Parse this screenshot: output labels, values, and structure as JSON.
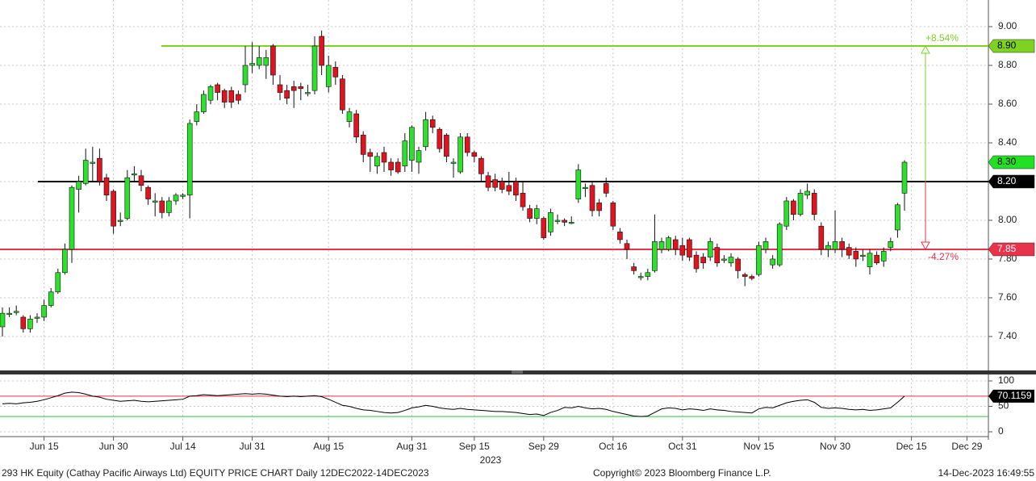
{
  "chart_data": [
    {
      "type": "candlestick",
      "xlim": [
        -0.35,
        142.09
      ],
      "xticks": [
        {
          "value": 6,
          "label": "Jun 15"
        },
        {
          "value": 16,
          "label": "Jun 30"
        },
        {
          "value": 26,
          "label": "Jul 14"
        },
        {
          "value": 36,
          "label": "Jul 31"
        },
        {
          "value": 47,
          "label": "Aug 15"
        },
        {
          "value": 59,
          "label": "Aug 31"
        },
        {
          "value": 68,
          "label": "Sep 15"
        },
        {
          "value": 78,
          "label": "Sep 29"
        },
        {
          "value": 88,
          "label": "Oct 16"
        },
        {
          "value": 98,
          "label": "Oct 31"
        },
        {
          "value": 109,
          "label": "Nov 15"
        },
        {
          "value": 120,
          "label": "Nov 30"
        },
        {
          "value": 131,
          "label": "Dec 15"
        },
        {
          "value": 139,
          "label": "Dec 29"
        }
      ],
      "x_sublabel": "2023",
      "ylim": [
        7.229,
        9.1375
      ],
      "yticks": [
        {
          "value": 7.4,
          "label": "7.40"
        },
        {
          "value": 7.6,
          "label": "7.60"
        },
        {
          "value": 7.8,
          "label": "7.80"
        },
        {
          "value": 8,
          "label": "8.00"
        },
        {
          "value": 8.2,
          "label": "8.20"
        },
        {
          "value": 8.4,
          "label": "8.40"
        },
        {
          "value": 8.6,
          "label": "8.60"
        },
        {
          "value": 8.8,
          "label": "8.80"
        },
        {
          "value": 9,
          "label": "9.00"
        }
      ],
      "grid": true,
      "up_color": "#2ee02e",
      "down_color": "#e0141e",
      "open": [
        7.45,
        7.52,
        7.53,
        7.5,
        7.44,
        7.5,
        7.5,
        7.56,
        7.63,
        7.73,
        7.85,
        8.16,
        8.19,
        8.3,
        8.32,
        8.22,
        8.15,
        8.0,
        8.01,
        8.24,
        8.23,
        8.17,
        8.1,
        8.1,
        8.04,
        8.1,
        8.13,
        8.13,
        8.51,
        8.56,
        8.62,
        8.7,
        8.67,
        8.67,
        8.65,
        8.7,
        8.8,
        8.8,
        8.8,
        8.9,
        8.7,
        8.67,
        8.69,
        8.69,
        8.66,
        8.67,
        8.95,
        8.69,
        8.79,
        8.73,
        8.51,
        8.55,
        8.44,
        8.35,
        8.28,
        8.35,
        8.3,
        8.3,
        8.28,
        8.31,
        8.3,
        8.38,
        8.52,
        8.47,
        8.44,
        8.3,
        8.25,
        8.43,
        8.35,
        8.32,
        8.23,
        8.21,
        8.2,
        8.18,
        8.2,
        8.14,
        8.06,
        8.01,
        8.01,
        7.94,
        8.0,
        8.0,
        7.99,
        8.11,
        8.17,
        8.18,
        8.09,
        8.19,
        8.09,
        7.94,
        7.88,
        7.76,
        7.71,
        7.71,
        7.74,
        7.85,
        7.85,
        7.9,
        7.87,
        7.9,
        7.82,
        7.81,
        7.81,
        7.86,
        7.8,
        7.78,
        7.8,
        7.72,
        7.71,
        7.72,
        7.85,
        7.77,
        7.77,
        7.97,
        8.1,
        8.03,
        8.13,
        8.14,
        7.97,
        7.85,
        7.85,
        7.89,
        7.86,
        7.84,
        7.82,
        7.76,
        7.82,
        7.79,
        7.86,
        7.95,
        8.14
      ],
      "high": [
        7.55,
        7.55,
        7.56,
        7.51,
        7.51,
        7.52,
        7.59,
        7.65,
        7.75,
        7.88,
        8.18,
        8.23,
        8.37,
        8.38,
        8.37,
        8.24,
        8.16,
        8.04,
        8.26,
        8.28,
        8.26,
        8.18,
        8.14,
        8.12,
        8.12,
        8.14,
        8.14,
        8.52,
        8.6,
        8.67,
        8.7,
        8.71,
        8.68,
        8.69,
        8.67,
        8.9,
        8.92,
        8.9,
        8.88,
        8.91,
        8.75,
        8.7,
        8.72,
        8.71,
        8.7,
        8.95,
        8.98,
        8.85,
        8.82,
        8.75,
        8.58,
        8.57,
        8.46,
        8.37,
        8.35,
        8.38,
        8.32,
        8.32,
        8.45,
        8.49,
        8.38,
        8.56,
        8.54,
        8.48,
        8.45,
        8.32,
        8.45,
        8.45,
        8.36,
        8.33,
        8.25,
        8.24,
        8.22,
        8.25,
        8.22,
        8.2,
        8.08,
        8.08,
        8.02,
        8.06,
        8.03,
        8.01,
        8.02,
        8.29,
        8.19,
        8.2,
        8.11,
        8.22,
        8.1,
        7.96,
        7.9,
        7.78,
        7.73,
        7.75,
        8.03,
        7.91,
        7.92,
        7.92,
        7.91,
        7.91,
        7.84,
        7.83,
        7.91,
        7.88,
        7.82,
        7.83,
        7.81,
        7.73,
        7.72,
        7.89,
        7.91,
        7.82,
        7.99,
        8.12,
        8.11,
        8.16,
        8.19,
        8.16,
        7.99,
        7.89,
        8.05,
        7.91,
        7.88,
        7.86,
        7.85,
        7.85,
        7.84,
        7.86,
        7.91,
        8.09,
        8.31
      ],
      "low": [
        7.4,
        7.5,
        7.51,
        7.42,
        7.42,
        7.47,
        7.48,
        7.55,
        7.62,
        7.72,
        7.78,
        8.04,
        8.18,
        8.2,
        8.18,
        8.1,
        7.93,
        7.97,
        8.0,
        8.2,
        8.15,
        8.08,
        8.02,
        8.01,
        8.02,
        8.08,
        8.11,
        8.01,
        8.49,
        8.55,
        8.6,
        8.62,
        8.58,
        8.58,
        8.6,
        8.66,
        8.76,
        8.78,
        8.73,
        8.7,
        8.62,
        8.6,
        8.58,
        8.62,
        8.64,
        8.65,
        8.75,
        8.66,
        8.7,
        8.55,
        8.48,
        8.4,
        8.3,
        8.25,
        8.24,
        8.25,
        8.23,
        8.24,
        8.25,
        8.25,
        8.24,
        8.36,
        8.45,
        8.35,
        8.3,
        8.22,
        8.24,
        8.33,
        8.3,
        8.2,
        8.15,
        8.15,
        8.14,
        8.13,
        8.1,
        8.05,
        7.99,
        7.98,
        7.9,
        7.92,
        7.98,
        7.97,
        7.98,
        8.09,
        8.12,
        8.02,
        8.02,
        8.12,
        7.95,
        7.88,
        7.8,
        7.72,
        7.69,
        7.69,
        7.73,
        7.83,
        7.84,
        7.82,
        7.79,
        7.79,
        7.73,
        7.75,
        7.79,
        7.76,
        7.78,
        7.76,
        7.7,
        7.66,
        7.69,
        7.71,
        7.83,
        7.75,
        7.76,
        7.95,
        8.0,
        8.02,
        8.11,
        8.0,
        7.82,
        7.81,
        7.83,
        7.81,
        7.8,
        7.76,
        7.79,
        7.72,
        7.77,
        7.76,
        7.84,
        7.91,
        8.05
      ],
      "close": [
        7.52,
        7.52,
        7.53,
        7.44,
        7.49,
        7.5,
        7.56,
        7.63,
        7.73,
        7.85,
        8.17,
        8.2,
        8.31,
        8.3,
        8.2,
        8.13,
        7.97,
        8.0,
        8.22,
        8.24,
        8.18,
        8.11,
        8.1,
        8.04,
        8.1,
        8.13,
        8.13,
        8.5,
        8.56,
        8.65,
        8.69,
        8.66,
        8.61,
        8.61,
        8.62,
        8.8,
        8.81,
        8.84,
        8.84,
        8.75,
        8.66,
        8.63,
        8.67,
        8.68,
        8.66,
        8.9,
        8.8,
        8.8,
        8.74,
        8.57,
        8.56,
        8.43,
        8.34,
        8.33,
        8.33,
        8.3,
        8.26,
        8.25,
        8.41,
        8.48,
        8.36,
        8.52,
        8.48,
        8.37,
        8.33,
        8.3,
        8.43,
        8.35,
        8.33,
        8.24,
        8.17,
        8.17,
        8.16,
        8.15,
        8.13,
        8.07,
        8.01,
        8.06,
        7.91,
        8.04,
        8.0,
        7.99,
        7.99,
        8.26,
        8.17,
        8.05,
        8.05,
        8.14,
        7.97,
        7.9,
        7.85,
        7.74,
        7.71,
        7.73,
        7.89,
        7.89,
        7.91,
        7.85,
        7.82,
        7.81,
        7.75,
        7.78,
        7.89,
        7.78,
        7.8,
        7.81,
        7.74,
        7.71,
        7.7,
        7.87,
        7.89,
        7.8,
        7.98,
        8.1,
        8.03,
        8.14,
        8.15,
        8.03,
        7.85,
        7.87,
        7.89,
        7.85,
        7.82,
        7.8,
        7.82,
        7.83,
        7.78,
        7.84,
        7.89,
        8.08,
        8.3
      ],
      "price_tags": [
        {
          "value": 8.9,
          "label": "8.90",
          "color": "#7ed321",
          "text_color": "#000000",
          "line": true
        },
        {
          "value": 8.3,
          "label": "8.30",
          "color": "#22e022",
          "text_color": "#000000",
          "line": false
        },
        {
          "value": 8.2,
          "label": "8.20",
          "color": "#000000",
          "text_color": "#ffffff",
          "line": true
        },
        {
          "value": 7.85,
          "label": "7.85",
          "color": "#e8334a",
          "text_color": "#ffffff",
          "line": true
        }
      ],
      "annotations": [
        {
          "text": "+8.54%",
          "color": "#7ed321"
        },
        {
          "text": "-4.27%",
          "color": "#e8334a"
        }
      ]
    },
    {
      "type": "line",
      "ylim": [
        -7.9,
        112.7
      ],
      "yticks": [
        0,
        50,
        100
      ],
      "grid": true,
      "reference_lines": [
        {
          "value": 70,
          "color": "#e8334a"
        },
        {
          "value": 30,
          "color": "#2ec82e"
        }
      ],
      "series": [
        {
          "color": "#000000",
          "values": [
            55,
            56,
            55,
            57,
            58,
            60,
            63,
            67,
            71,
            76,
            78,
            77,
            74,
            70,
            68,
            64,
            62,
            60,
            61,
            62,
            60,
            59,
            60,
            61,
            62,
            63,
            64,
            70,
            71,
            73,
            72,
            71,
            72,
            73,
            74,
            75,
            74,
            75,
            74,
            72,
            70,
            69,
            70,
            69,
            70,
            71,
            69,
            64,
            58,
            52,
            50,
            46,
            43,
            42,
            40,
            38,
            37,
            38,
            42,
            47,
            49,
            52,
            50,
            47,
            45,
            44,
            46,
            44,
            43,
            42,
            41,
            40,
            40,
            39,
            38,
            36,
            34,
            35,
            32,
            38,
            42,
            48,
            47,
            50,
            47,
            45,
            46,
            44,
            40,
            37,
            34,
            31,
            30,
            31,
            38,
            45,
            47,
            46,
            43,
            45,
            44,
            42,
            45,
            43,
            42,
            40,
            39,
            38,
            37,
            45,
            48,
            47,
            52,
            57,
            60,
            62,
            63,
            58,
            48,
            46,
            47,
            46,
            44,
            43,
            44,
            42,
            43,
            45,
            47,
            58,
            70.1159
          ]
        }
      ]
    }
  ],
  "footer": {
    "left": "293 HK Equity (Cathay Pacific Airways Ltd) EQUITY PRICE CHART  Daily 12DEC2022-14DEC2023",
    "center": "Copyright© 2023 Bloomberg Finance L.P.",
    "right": "14-Dec-2023 16:49:55"
  }
}
